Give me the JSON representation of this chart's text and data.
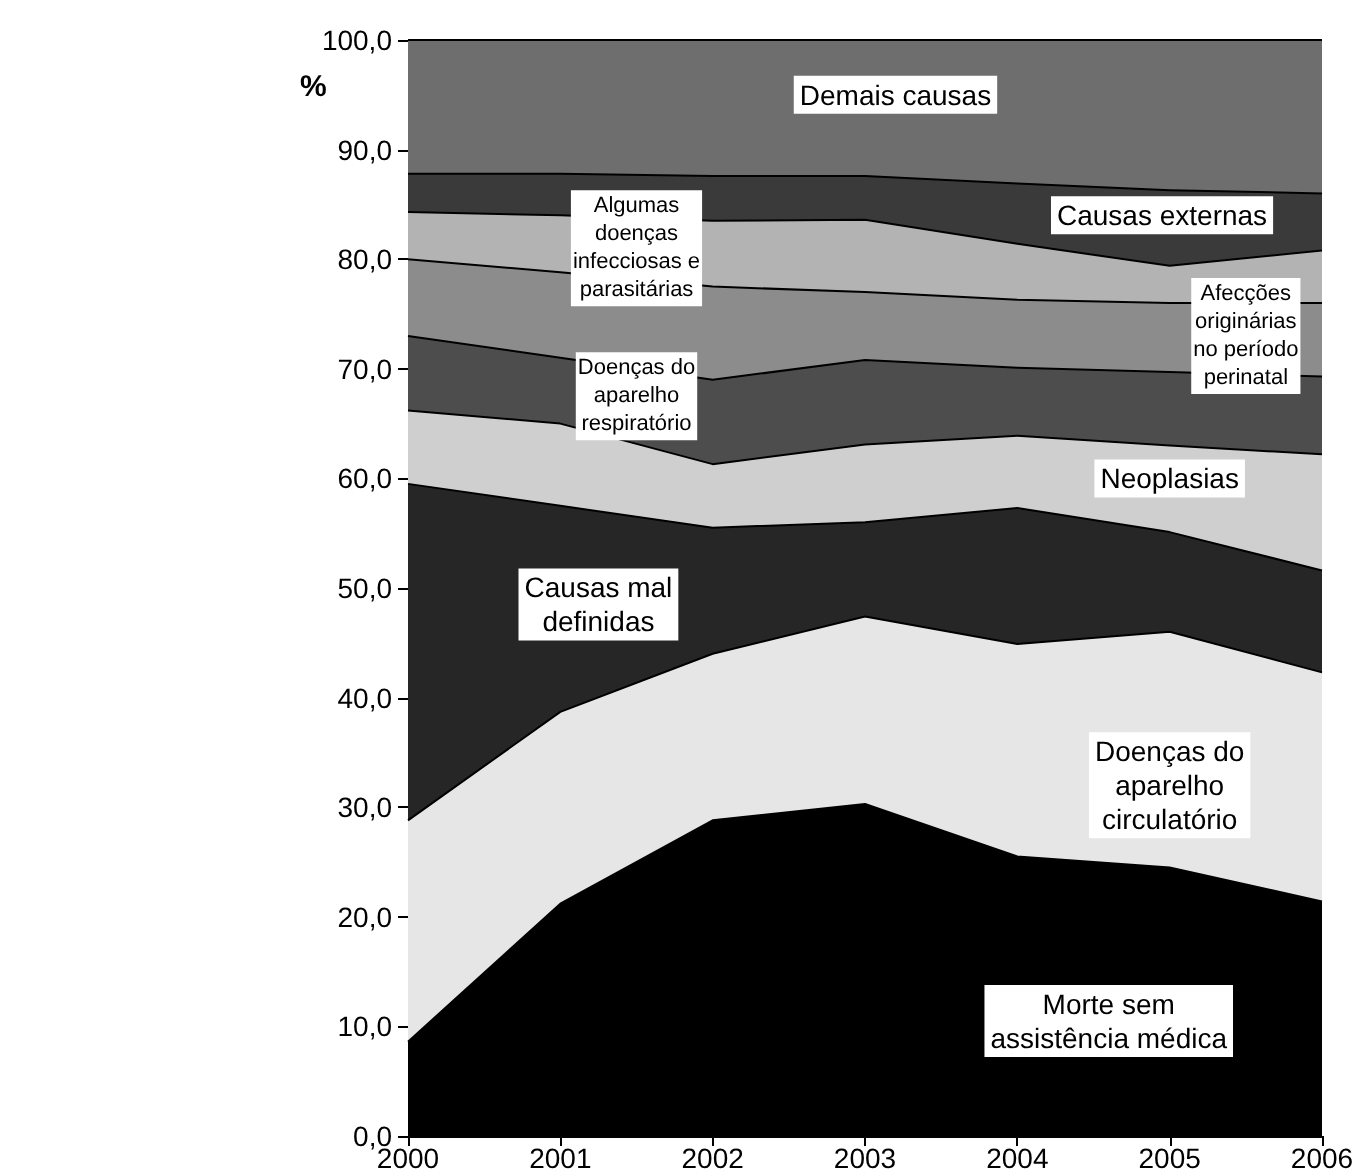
{
  "chart_data": {
    "type": "area",
    "stacked": true,
    "ylabel": "%",
    "categories": [
      "2000",
      "2001",
      "2002",
      "2003",
      "2004",
      "2005",
      "2006"
    ],
    "series": [
      {
        "name": "Morte sem assistência médica",
        "color": "#000000",
        "values": [
          8.6,
          21.2,
          28.8,
          30.3,
          25.5,
          24.5,
          21.4
        ]
      },
      {
        "name": "Doenças do aparelho circulatório",
        "color": "#e6e6e6",
        "values": [
          20.2,
          17.5,
          15.2,
          17.1,
          19.4,
          21.5,
          20.9
        ]
      },
      {
        "name": "Causas mal definidas",
        "color": "#262626",
        "values": [
          30.7,
          18.8,
          11.5,
          8.6,
          12.4,
          9.1,
          9.3
        ]
      },
      {
        "name": "Neoplasias",
        "color": "#cfcfcf",
        "values": [
          6.7,
          7.5,
          5.8,
          7.1,
          6.6,
          7.9,
          10.6
        ]
      },
      {
        "name": "Doenças do aparelho respiratório",
        "color": "#4d4d4d",
        "values": [
          6.8,
          6.0,
          7.7,
          7.7,
          6.2,
          6.7,
          7.1
        ]
      },
      {
        "name": "Afecções originárias no período perinatal",
        "color": "#8c8c8c",
        "values": [
          7.0,
          7.8,
          8.5,
          6.2,
          6.2,
          6.3,
          6.7
        ]
      },
      {
        "name": "Algumas doenças infecciosas e parasitárias",
        "color": "#b3b3b3",
        "values": [
          4.3,
          5.2,
          6.0,
          6.6,
          5.1,
          3.4,
          4.8
        ]
      },
      {
        "name": "Causas externas",
        "color": "#3a3a3a",
        "values": [
          3.5,
          3.8,
          4.1,
          4.0,
          5.5,
          6.9,
          5.2
        ]
      },
      {
        "name": "Demais causas",
        "color": "#6e6e6e",
        "values": [
          12.2,
          12.2,
          12.4,
          12.4,
          13.1,
          13.7,
          14.0
        ]
      }
    ],
    "ylim": [
      0,
      100
    ],
    "yticks": [
      {
        "value": 0,
        "label": "0,0"
      },
      {
        "value": 10,
        "label": "10,0"
      },
      {
        "value": 20,
        "label": "20,0"
      },
      {
        "value": 30,
        "label": "30,0"
      },
      {
        "value": 40,
        "label": "40,0"
      },
      {
        "value": 50,
        "label": "50,0"
      },
      {
        "value": 60,
        "label": "60,0"
      },
      {
        "value": 70,
        "label": "70,0"
      },
      {
        "value": 80,
        "label": "80,0"
      },
      {
        "value": 90,
        "label": "90,0"
      },
      {
        "value": 100,
        "label": "100,0"
      }
    ],
    "grid": false,
    "legend": false
  }
}
